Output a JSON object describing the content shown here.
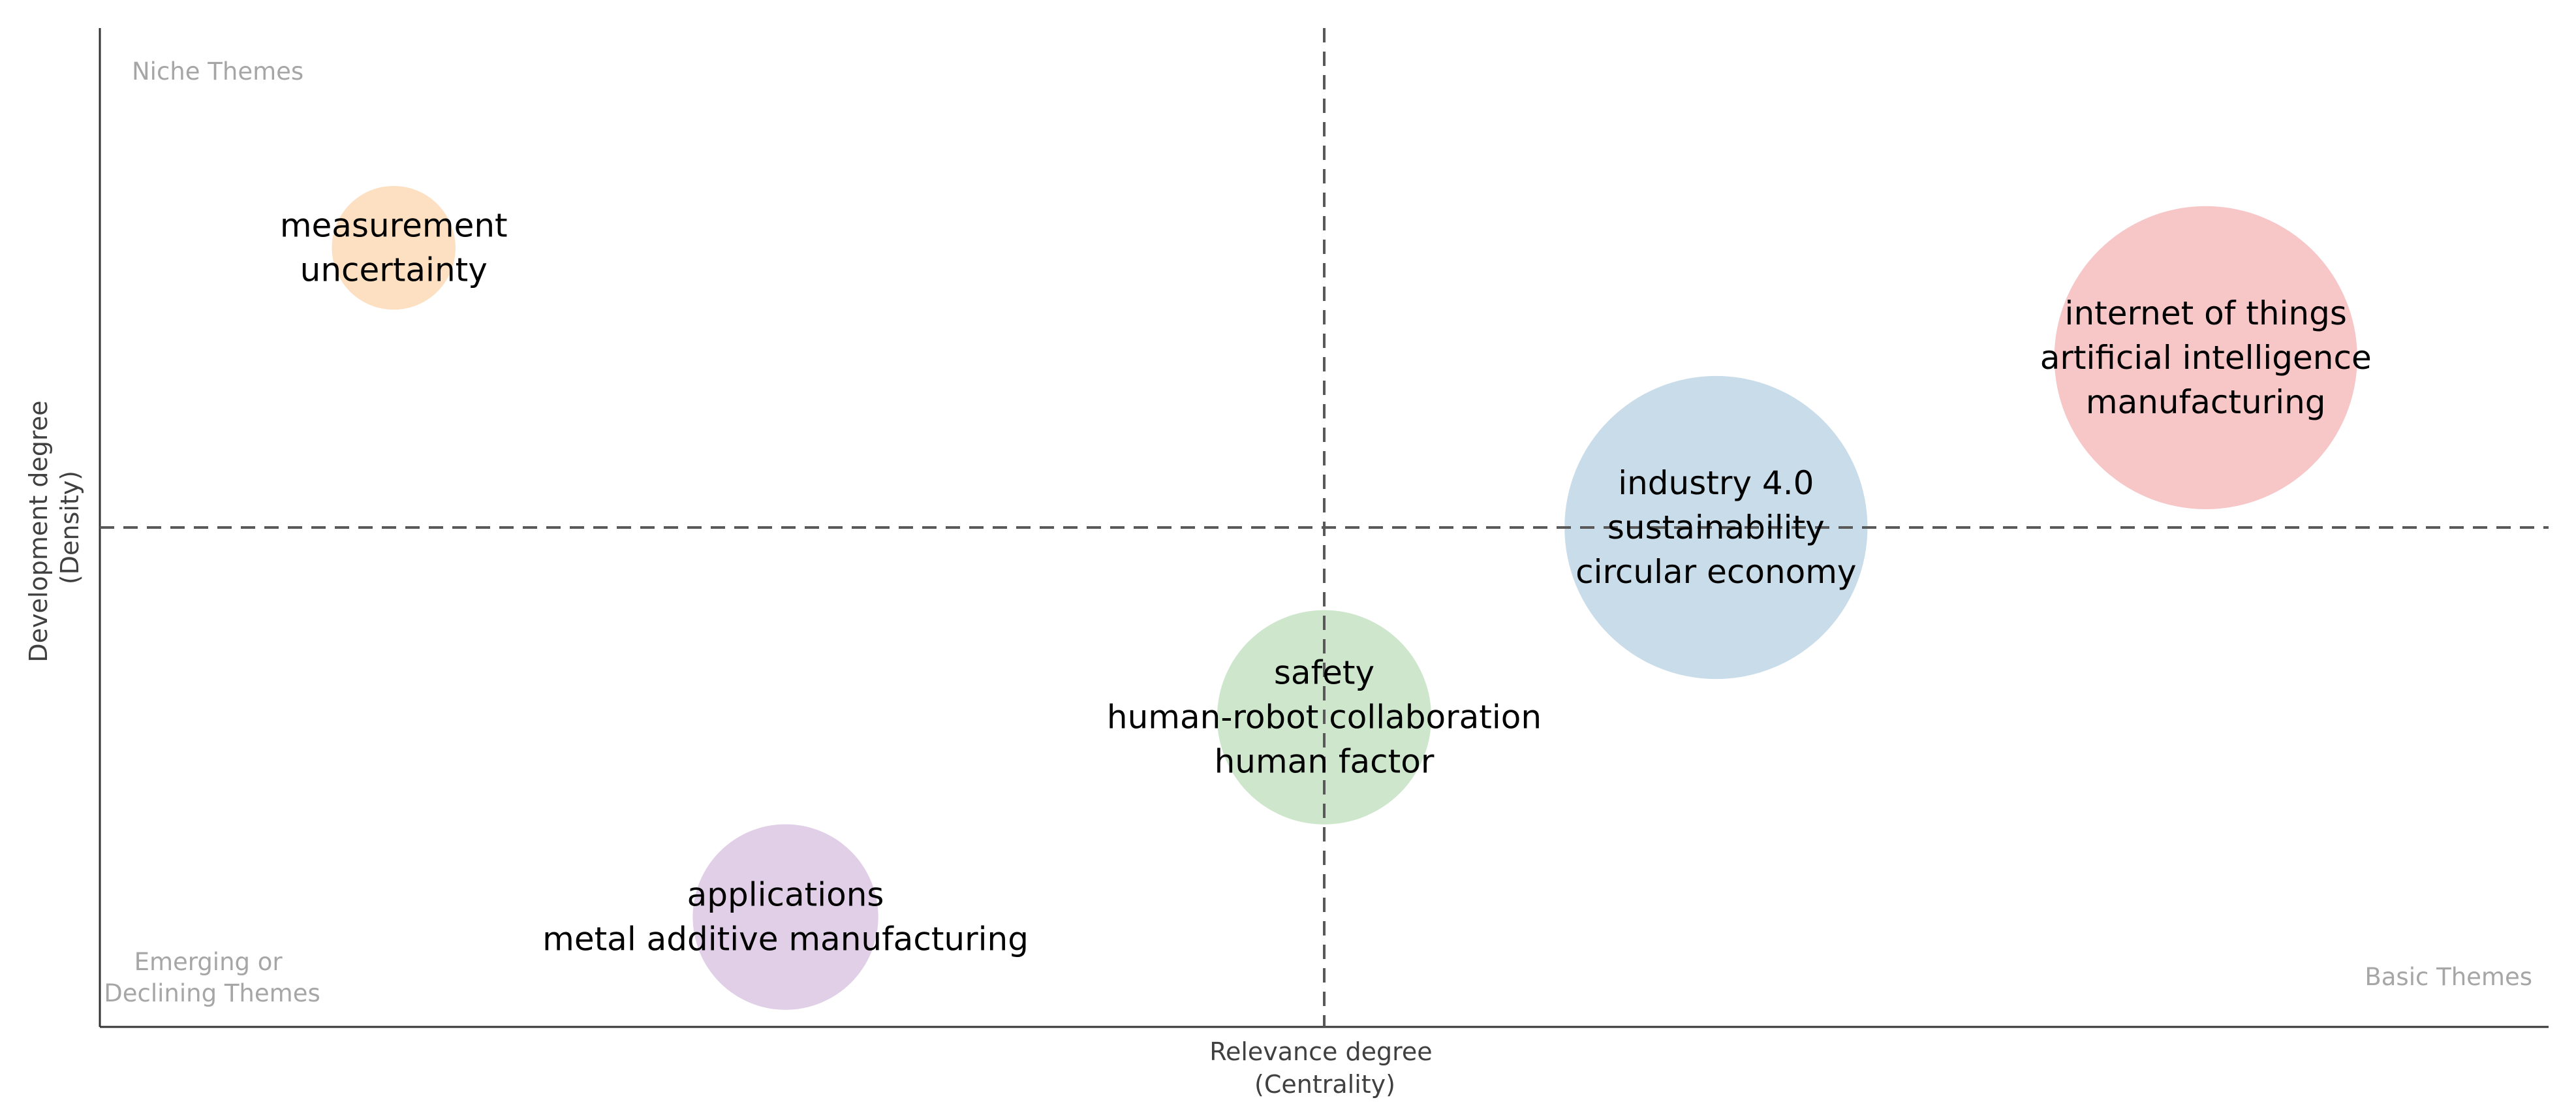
{
  "chart_data": {
    "type": "scatter",
    "title": "",
    "xlabel": [
      "Relevance degree",
      "(Centrality)"
    ],
    "ylabel": [
      "Development degree",
      "(Density)"
    ],
    "xlim": [
      0,
      1
    ],
    "ylim": [
      0,
      1
    ],
    "grid": false,
    "quadrant_labels": {
      "top_left": "Niche Themes",
      "bottom_left": [
        "Emerging or",
        "Declining Themes"
      ],
      "bottom_right": "Basic Themes"
    },
    "points": [
      {
        "labels": [
          "measurement",
          "uncertainty"
        ],
        "x": 0.12,
        "y": 0.78,
        "size": 0.02,
        "color": "#fde0c2"
      },
      {
        "labels": [
          "internet of things",
          "artificial intelligence",
          "manufacturing"
        ],
        "x": 0.86,
        "y": 0.67,
        "size": 0.12,
        "color": "#f7c6c7"
      },
      {
        "labels": [
          "industry 4.0",
          "sustainability",
          "circular economy"
        ],
        "x": 0.66,
        "y": 0.5,
        "size": 0.12,
        "color": "#c9dcea"
      },
      {
        "labels": [
          "safety",
          "human-robot collaboration",
          "human factor"
        ],
        "x": 0.5,
        "y": 0.31,
        "size": 0.06,
        "color": "#cde6cc"
      },
      {
        "labels": [
          "applications",
          "metal additive manufacturing"
        ],
        "x": 0.28,
        "y": 0.11,
        "size": 0.045,
        "color": "#e1cfe7"
      }
    ]
  }
}
